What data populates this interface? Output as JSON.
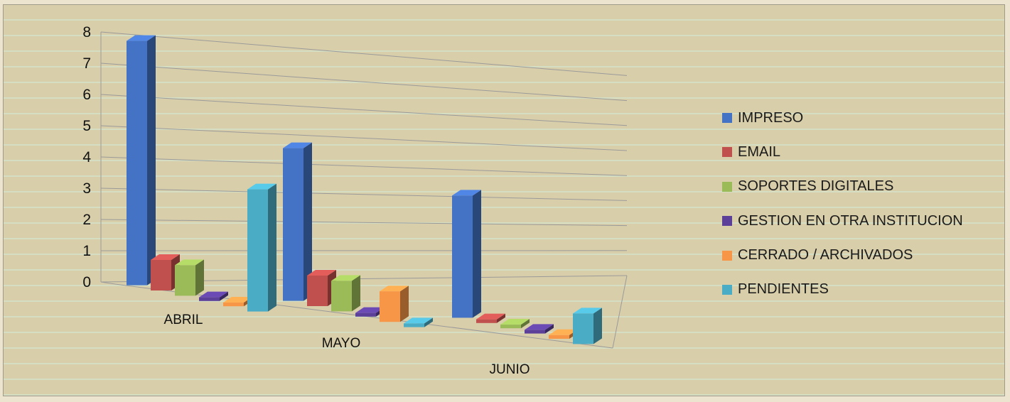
{
  "chart_data": {
    "type": "bar",
    "categories": [
      "ABRIL",
      "MAYO",
      "JUNIO"
    ],
    "series": [
      {
        "name": "IMPRESO",
        "values": [
          8,
          5,
          4
        ],
        "color": "#4472c4"
      },
      {
        "name": "EMAIL",
        "values": [
          1,
          1,
          0
        ],
        "color": "#c0504d"
      },
      {
        "name": "SOPORTES DIGITALES",
        "values": [
          1,
          1,
          0
        ],
        "color": "#9bbb59"
      },
      {
        "name": "GESTION EN OTRA INSTITUCION",
        "values": [
          0,
          0,
          0
        ],
        "color": "#5b3f99"
      },
      {
        "name": "CERRADO / ARCHIVADOS",
        "values": [
          0,
          1,
          0
        ],
        "color": "#f79646"
      },
      {
        "name": "PENDIENTES",
        "values": [
          4,
          0,
          1
        ],
        "color": "#4bacc6"
      }
    ],
    "y_ticks": [
      "0",
      "1",
      "2",
      "3",
      "4",
      "5",
      "6",
      "7",
      "8"
    ],
    "ylim": [
      0,
      8
    ],
    "grid": true,
    "legend_position": "right",
    "title": "",
    "xlabel": "",
    "ylabel": ""
  }
}
